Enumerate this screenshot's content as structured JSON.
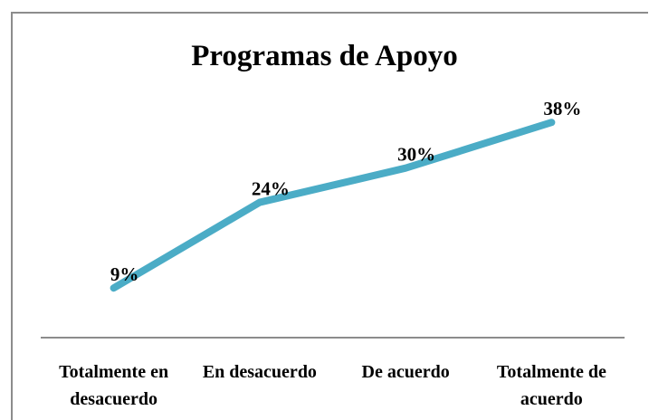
{
  "chart_data": {
    "type": "line",
    "title": "Programas de Apoyo",
    "categories": [
      "Totalmente en desacuerdo",
      "En desacuerdo",
      "De acuerdo",
      "Totalmente de acuerdo"
    ],
    "series": [
      {
        "name": "Programas de Apoyo",
        "color": "#4bacc6",
        "values": [
          9,
          24,
          30,
          38
        ],
        "value_labels": [
          "9%",
          "24%",
          "30%",
          "38%"
        ]
      }
    ]
  }
}
